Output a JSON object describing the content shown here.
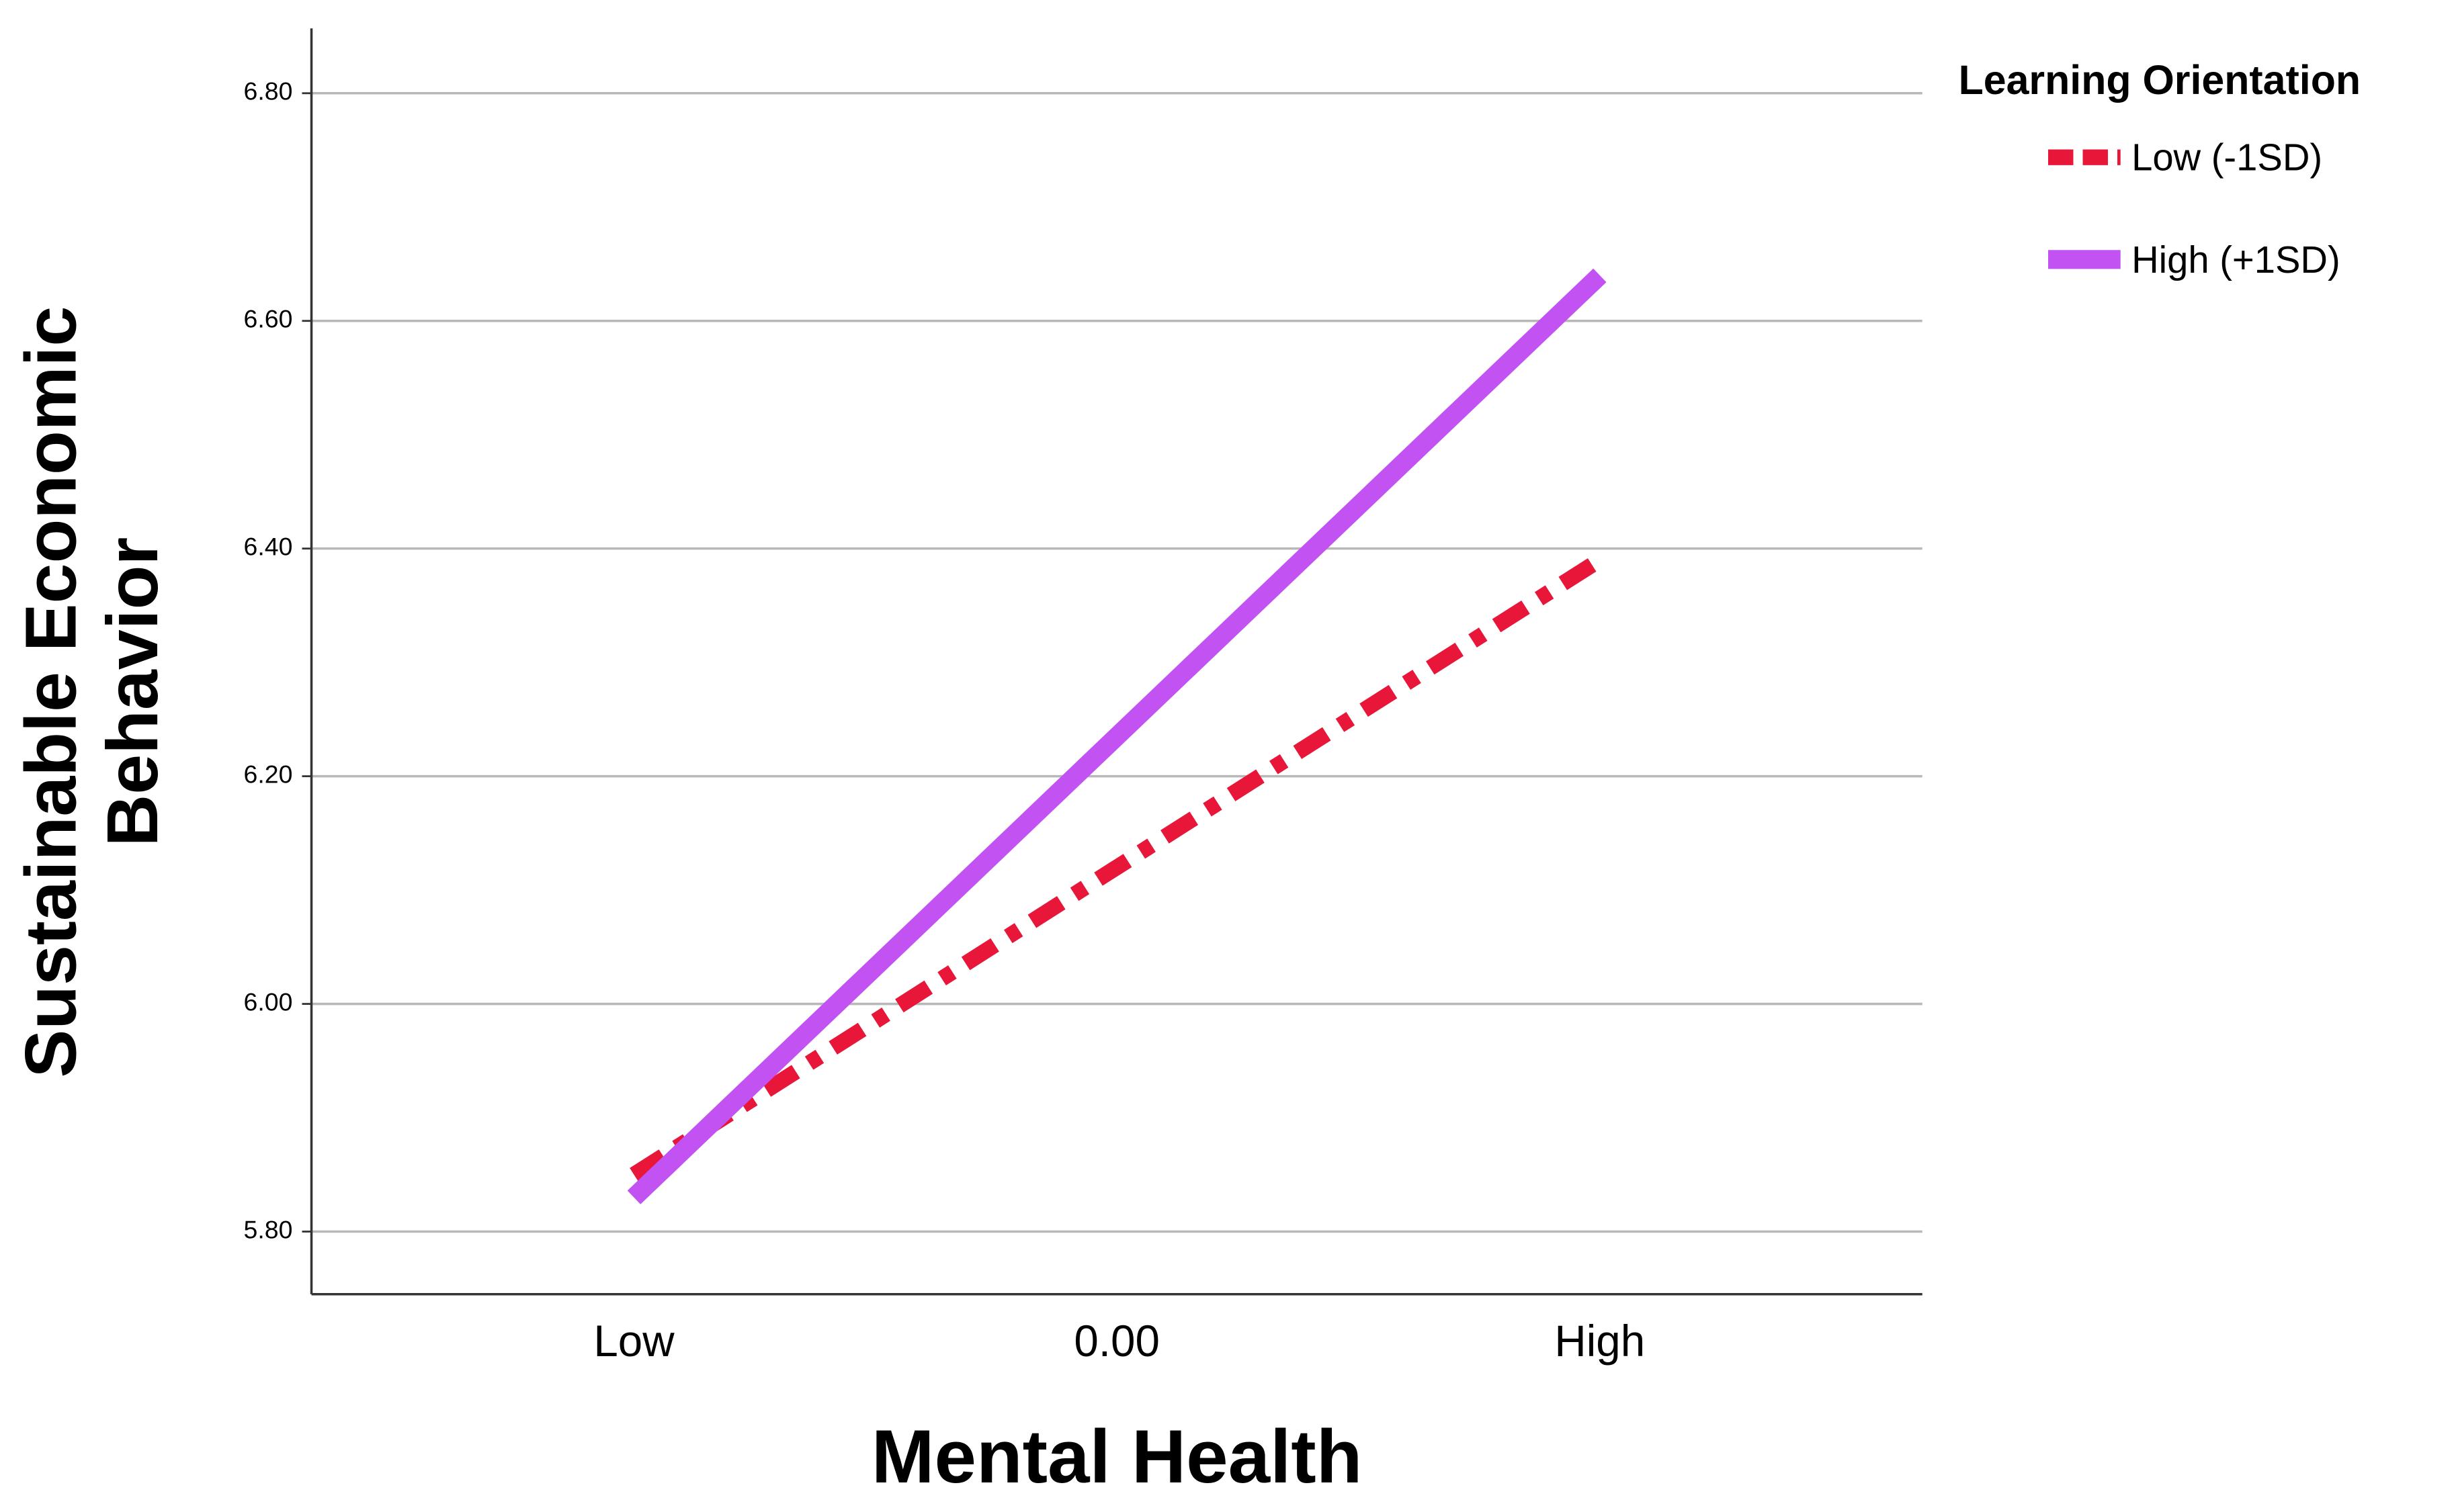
{
  "chart_data": {
    "type": "line",
    "xlabel": "Mental Health",
    "ylabel": [
      "Sustainable Economic",
      "Behavior"
    ],
    "legend_title": "Learning Orientation",
    "categories": [
      "Low",
      "0.00",
      "High"
    ],
    "series": [
      {
        "name": "Low (-1SD)",
        "color": "#e8173a",
        "style": "dashdot",
        "values": [
          5.85,
          6.12,
          6.39
        ]
      },
      {
        "name": "High (+1SD)",
        "color": "#c252f2",
        "style": "solid",
        "values": [
          5.83,
          6.235,
          6.64
        ]
      }
    ],
    "ylim": [
      5.745,
      6.857
    ],
    "yticks": [
      {
        "value": 5.8,
        "label": "5.80"
      },
      {
        "value": 6.0,
        "label": "6.00"
      },
      {
        "value": 6.2,
        "label": "6.20"
      },
      {
        "value": 6.4,
        "label": "6.40"
      },
      {
        "value": 6.6,
        "label": "6.60"
      },
      {
        "value": 6.8,
        "label": "6.80"
      }
    ],
    "grid": true,
    "legend": "right"
  }
}
